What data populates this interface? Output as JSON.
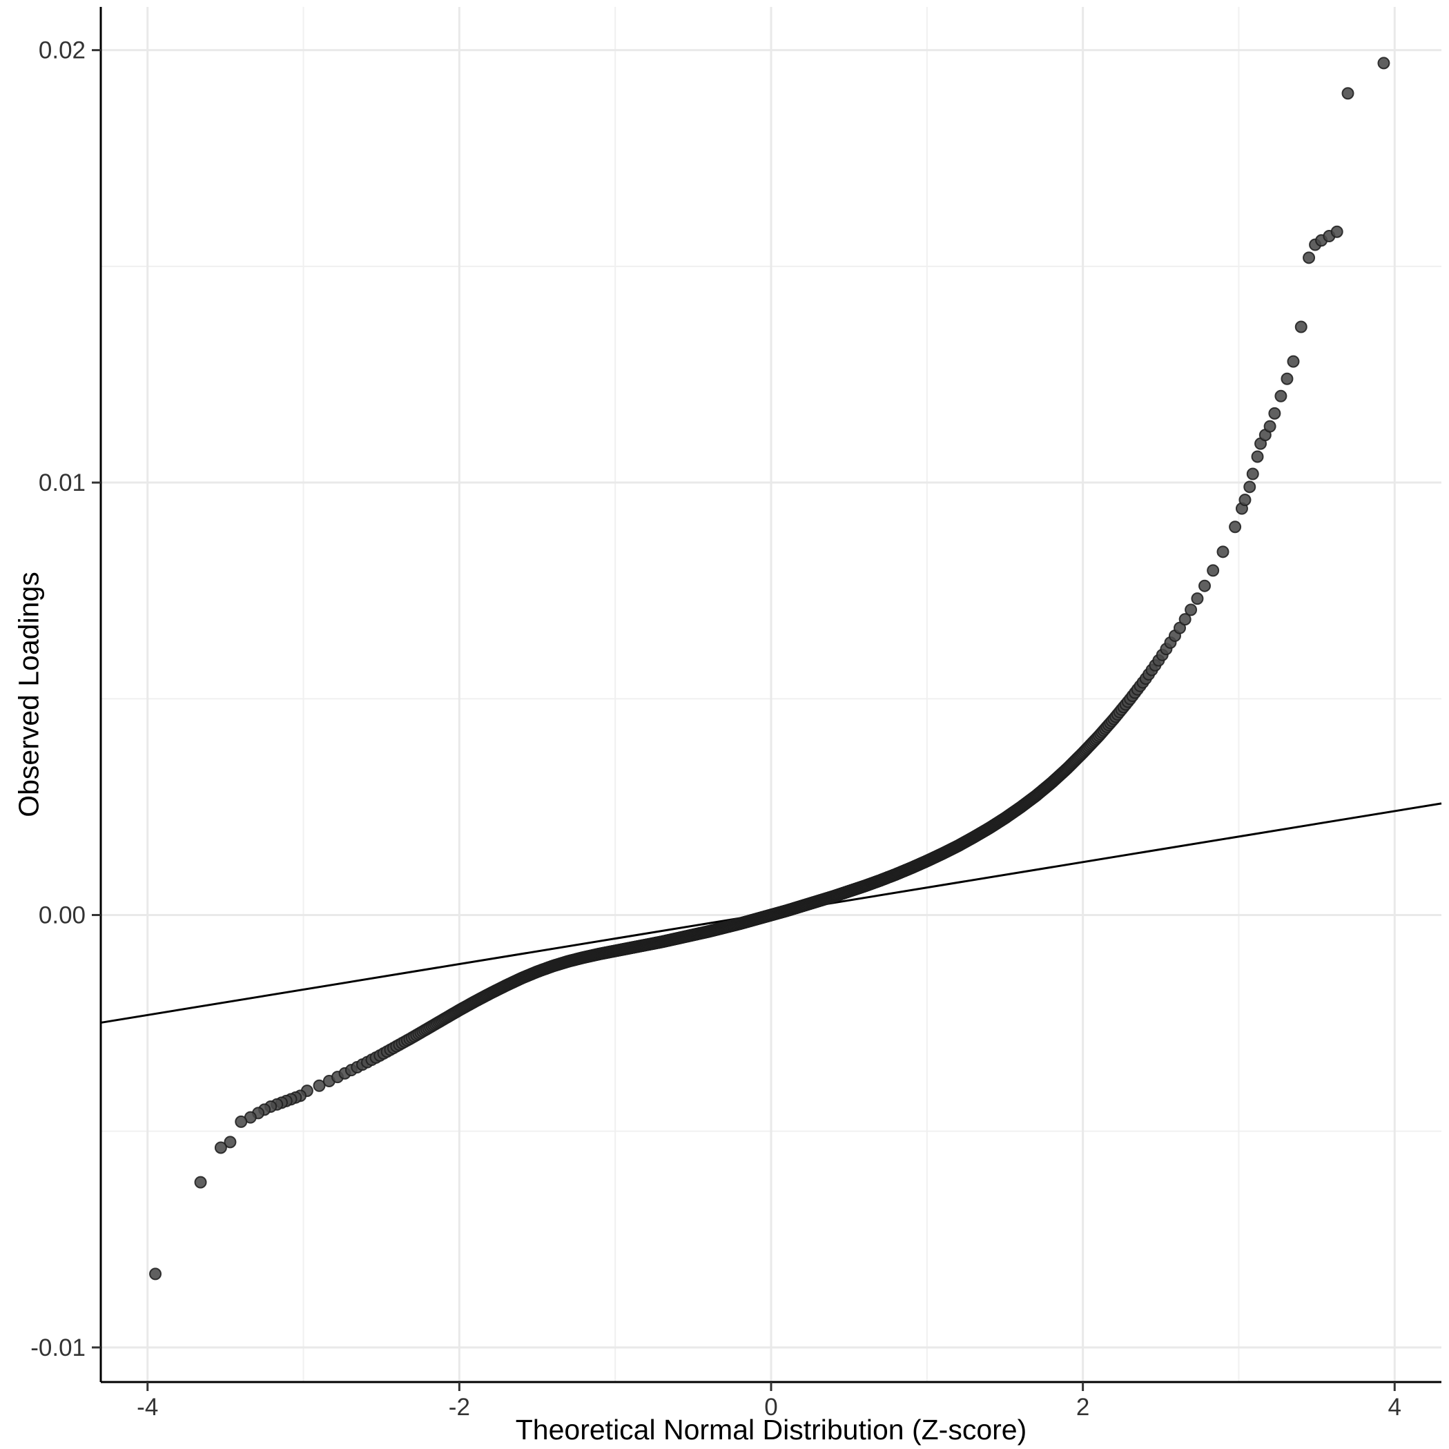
{
  "figure": {
    "background": "#ffffff",
    "kind": "qq-plot"
  },
  "chart_data": {
    "type": "scatter",
    "title": "",
    "xlabel": "Theoretical Normal Distribution (Z-score)",
    "ylabel": "Observed Loadings",
    "xlim": [
      -4.3,
      4.3
    ],
    "ylim": [
      -0.0108,
      0.021
    ],
    "x_major_ticks": [
      -4,
      -2,
      0,
      2,
      4
    ],
    "x_major_labels": [
      "-4",
      "-2",
      "0",
      "2",
      "4"
    ],
    "x_minor_ticks": [
      -3,
      -1,
      1,
      3
    ],
    "y_major_ticks": [
      -0.01,
      0,
      0.01,
      0.02
    ],
    "y_major_labels": [
      "-0.01",
      "0.00",
      "0.01",
      "0.02"
    ],
    "y_minor_ticks": [
      -0.005,
      0.005,
      0.015
    ],
    "grid": true,
    "legend": "none",
    "styles": {
      "panel_bg": "#ffffff",
      "grid_major_color": "#e9e9e9",
      "grid_minor_color": "#f0f0f0",
      "axis_line_color": "#000000",
      "tick_color": "#333333",
      "tick_label_color": "#333333",
      "title_color": "#000000",
      "point_fill": "#4a4a4a",
      "point_stroke": "#1f1f1f",
      "point_opacity": 0.88,
      "point_radius": 8,
      "reference_line_color": "#000000"
    },
    "reference_line": {
      "x1": -4.3,
      "y1": -0.00249,
      "x2": 4.3,
      "y2": 0.00258
    },
    "qq_curve": {
      "n_points": 2400,
      "knots": [
        [
          -3.0,
          -0.0041
        ],
        [
          -2.9,
          -0.00395
        ],
        [
          -2.8,
          -0.00378
        ],
        [
          -2.7,
          -0.0036
        ],
        [
          -2.6,
          -0.00342
        ],
        [
          -2.5,
          -0.00323
        ],
        [
          -2.4,
          -0.00303
        ],
        [
          -2.3,
          -0.00283
        ],
        [
          -2.2,
          -0.00262
        ],
        [
          -2.1,
          -0.00241
        ],
        [
          -2.0,
          -0.0022
        ],
        [
          -1.9,
          -0.002
        ],
        [
          -1.8,
          -0.00181
        ],
        [
          -1.7,
          -0.00163
        ],
        [
          -1.6,
          -0.00146
        ],
        [
          -1.5,
          -0.00131
        ],
        [
          -1.4,
          -0.00118
        ],
        [
          -1.3,
          -0.00107
        ],
        [
          -1.2,
          -0.00098
        ],
        [
          -1.1,
          -0.0009
        ],
        [
          -1.0,
          -0.00083
        ],
        [
          -0.9,
          -0.00076
        ],
        [
          -0.8,
          -0.00069
        ],
        [
          -0.7,
          -0.00062
        ],
        [
          -0.6,
          -0.00054
        ],
        [
          -0.5,
          -0.00046
        ],
        [
          -0.4,
          -0.00038
        ],
        [
          -0.3,
          -0.00029
        ],
        [
          -0.2,
          -0.0002
        ],
        [
          -0.1,
          -0.0001
        ],
        [
          0.0,
          0.0
        ],
        [
          0.1,
          0.0001
        ],
        [
          0.2,
          0.00021
        ],
        [
          0.3,
          0.00032
        ],
        [
          0.4,
          0.00043
        ],
        [
          0.5,
          0.00055
        ],
        [
          0.6,
          0.00067
        ],
        [
          0.7,
          0.0008
        ],
        [
          0.8,
          0.00094
        ],
        [
          0.9,
          0.00109
        ],
        [
          1.0,
          0.00125
        ],
        [
          1.1,
          0.00142
        ],
        [
          1.2,
          0.0016
        ],
        [
          1.3,
          0.0018
        ],
        [
          1.4,
          0.00201
        ],
        [
          1.5,
          0.00224
        ],
        [
          1.6,
          0.00249
        ],
        [
          1.7,
          0.00276
        ],
        [
          1.8,
          0.00306
        ],
        [
          1.9,
          0.00339
        ],
        [
          2.0,
          0.00375
        ],
        [
          2.1,
          0.00413
        ],
        [
          2.2,
          0.00454
        ],
        [
          2.3,
          0.00498
        ],
        [
          2.4,
          0.00545
        ],
        [
          2.5,
          0.00596
        ],
        [
          2.6,
          0.00651
        ],
        [
          2.7,
          0.0071
        ],
        [
          2.8,
          0.00773
        ],
        [
          2.9,
          0.00841
        ],
        [
          3.0,
          0.00915
        ]
      ]
    },
    "outliers_right": [
      [
        3.02,
        0.0094
      ],
      [
        3.04,
        0.0096
      ],
      [
        3.07,
        0.0099
      ],
      [
        3.09,
        0.0102
      ],
      [
        3.12,
        0.0106
      ],
      [
        3.14,
        0.0109
      ],
      [
        3.17,
        0.0111
      ],
      [
        3.2,
        0.0113
      ],
      [
        3.23,
        0.0116
      ],
      [
        3.27,
        0.012
      ],
      [
        3.31,
        0.0124
      ],
      [
        3.35,
        0.0128
      ],
      [
        3.4,
        0.0136
      ],
      [
        3.45,
        0.0152
      ],
      [
        3.49,
        0.0155
      ],
      [
        3.53,
        0.0156
      ],
      [
        3.58,
        0.0157
      ],
      [
        3.63,
        0.0158
      ],
      [
        3.7,
        0.019
      ],
      [
        3.93,
        0.0197
      ]
    ],
    "outliers_left": [
      [
        -3.02,
        -0.00418
      ],
      [
        -3.05,
        -0.00422
      ],
      [
        -3.08,
        -0.00426
      ],
      [
        -3.11,
        -0.0043
      ],
      [
        -3.14,
        -0.00434
      ],
      [
        -3.17,
        -0.00438
      ],
      [
        -3.21,
        -0.00443
      ],
      [
        -3.25,
        -0.0045
      ],
      [
        -3.29,
        -0.00458
      ],
      [
        -3.34,
        -0.00468
      ],
      [
        -3.4,
        -0.00478
      ],
      [
        -3.47,
        -0.00525
      ],
      [
        -3.53,
        -0.00538
      ],
      [
        -3.66,
        -0.00618
      ],
      [
        -3.95,
        -0.0083
      ]
    ]
  }
}
